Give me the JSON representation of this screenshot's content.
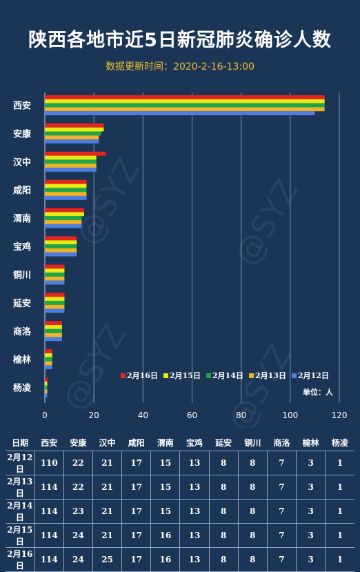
{
  "title": "陕西各地市近5日新冠肺炎确诊人数",
  "subtitle": "数据更新时间：2020-2-16-13:00",
  "unit_label": "单位：人",
  "watermark": "@SYZ",
  "chart_data": {
    "type": "bar",
    "orientation": "horizontal",
    "categories": [
      "西安",
      "安康",
      "汉中",
      "咸阳",
      "渭南",
      "宝鸡",
      "铜川",
      "延安",
      "商洛",
      "榆林",
      "杨凌"
    ],
    "series": [
      {
        "name": "2月16日",
        "color": "#e52421",
        "values": [
          114,
          24,
          25,
          17,
          16,
          13,
          8,
          8,
          7,
          3,
          1
        ]
      },
      {
        "name": "2月15日",
        "color": "#e8ea10",
        "values": [
          114,
          24,
          21,
          17,
          16,
          13,
          8,
          8,
          7,
          3,
          1
        ]
      },
      {
        "name": "2月14日",
        "color": "#1fa64a",
        "values": [
          114,
          23,
          21,
          17,
          15,
          13,
          8,
          8,
          7,
          3,
          1
        ]
      },
      {
        "name": "2月13日",
        "color": "#f0b323",
        "values": [
          114,
          22,
          21,
          17,
          15,
          13,
          8,
          8,
          7,
          3,
          1
        ]
      },
      {
        "name": "2月12日",
        "color": "#4f7de0",
        "values": [
          110,
          22,
          21,
          17,
          15,
          13,
          8,
          8,
          7,
          3,
          1
        ]
      }
    ],
    "xlim": [
      0,
      120
    ],
    "xticks": [
      "0",
      "20",
      "40",
      "60",
      "80",
      "100",
      "120"
    ],
    "grid": true,
    "legend_position": "bottom-right"
  },
  "table": {
    "header": [
      "日期",
      "西安",
      "安康",
      "汉中",
      "咸阳",
      "渭南",
      "宝鸡",
      "延安",
      "铜川",
      "商洛",
      "榆林",
      "杨凌"
    ],
    "rows": [
      [
        "2月12日",
        "110",
        "22",
        "21",
        "17",
        "15",
        "13",
        "8",
        "8",
        "7",
        "3",
        "1"
      ],
      [
        "2月13日",
        "114",
        "22",
        "21",
        "17",
        "15",
        "13",
        "8",
        "8",
        "7",
        "3",
        "1"
      ],
      [
        "2月14日",
        "114",
        "23",
        "21",
        "17",
        "15",
        "13",
        "8",
        "8",
        "7",
        "3",
        "1"
      ],
      [
        "2月15日",
        "114",
        "24",
        "21",
        "17",
        "16",
        "13",
        "8",
        "8",
        "7",
        "3",
        "1"
      ],
      [
        "2月16日",
        "114",
        "24",
        "25",
        "17",
        "16",
        "13",
        "8",
        "8",
        "7",
        "3",
        "1"
      ]
    ]
  }
}
